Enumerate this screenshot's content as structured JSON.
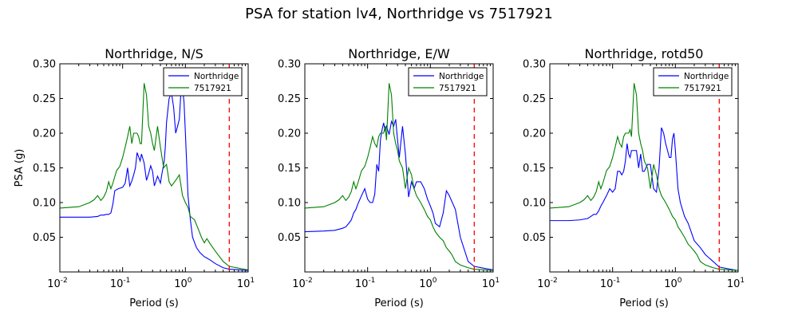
{
  "figure": {
    "suptitle": "PSA for station lv4, Northridge vs 7517921"
  },
  "chart_data": [
    {
      "type": "line",
      "title": "Northridge, N/S",
      "xlabel": "Period (s)",
      "ylabel": "PSA (g)",
      "xscale": "log",
      "xlim": [
        0.01,
        10
      ],
      "ylim": [
        0,
        0.3
      ],
      "yticks": [
        "0.05",
        "0.10",
        "0.15",
        "0.20",
        "0.25",
        "0.30"
      ],
      "xticks": [
        {
          "base": "10",
          "exp": "-2"
        },
        {
          "base": "10",
          "exp": "-1"
        },
        {
          "base": "10",
          "exp": "0"
        },
        {
          "base": "10",
          "exp": "1"
        }
      ],
      "legend": "top-right",
      "vline": {
        "x": 5,
        "color": "#ff0000",
        "style": "dashed"
      },
      "series": [
        {
          "name": "Northridge",
          "color": "#0000ff",
          "x": [
            0.01,
            0.02,
            0.03,
            0.04,
            0.045,
            0.05,
            0.055,
            0.06,
            0.065,
            0.07,
            0.075,
            0.085,
            0.1,
            0.11,
            0.12,
            0.13,
            0.14,
            0.15,
            0.16,
            0.17,
            0.19,
            0.2,
            0.22,
            0.24,
            0.26,
            0.28,
            0.3,
            0.32,
            0.36,
            0.4,
            0.42,
            0.46,
            0.48,
            0.5,
            0.55,
            0.6,
            0.65,
            0.7,
            0.75,
            0.8,
            0.85,
            0.9,
            0.95,
            1.0,
            1.1,
            1.2,
            1.3,
            1.5,
            1.7,
            2.0,
            2.2,
            2.5,
            3.0,
            4.0,
            5.0,
            7.5,
            10
          ],
          "y": [
            0.079,
            0.079,
            0.079,
            0.08,
            0.082,
            0.082,
            0.083,
            0.083,
            0.085,
            0.098,
            0.117,
            0.12,
            0.122,
            0.128,
            0.15,
            0.124,
            0.131,
            0.14,
            0.15,
            0.172,
            0.16,
            0.17,
            0.157,
            0.132,
            0.142,
            0.153,
            0.145,
            0.124,
            0.138,
            0.128,
            0.14,
            0.16,
            0.182,
            0.215,
            0.25,
            0.258,
            0.237,
            0.2,
            0.21,
            0.22,
            0.26,
            0.265,
            0.245,
            0.2,
            0.11,
            0.075,
            0.05,
            0.035,
            0.028,
            0.022,
            0.02,
            0.017,
            0.012,
            0.006,
            0.004,
            0.003,
            0.002
          ]
        },
        {
          "name": "7517921",
          "color": "#008000",
          "x": [
            0.01,
            0.02,
            0.03,
            0.035,
            0.04,
            0.045,
            0.05,
            0.055,
            0.06,
            0.065,
            0.07,
            0.08,
            0.09,
            0.1,
            0.11,
            0.12,
            0.13,
            0.14,
            0.15,
            0.16,
            0.17,
            0.18,
            0.19,
            0.2,
            0.22,
            0.24,
            0.26,
            0.28,
            0.3,
            0.32,
            0.36,
            0.4,
            0.45,
            0.5,
            0.55,
            0.6,
            0.7,
            0.8,
            0.9,
            1.0,
            1.1,
            1.2,
            1.4,
            1.6,
            1.8,
            2.0,
            2.2,
            2.5,
            3.0,
            4.0,
            5.0,
            7.5,
            10
          ],
          "y": [
            0.092,
            0.094,
            0.1,
            0.104,
            0.11,
            0.103,
            0.108,
            0.116,
            0.13,
            0.12,
            0.128,
            0.146,
            0.152,
            0.165,
            0.18,
            0.195,
            0.21,
            0.185,
            0.2,
            0.2,
            0.2,
            0.195,
            0.185,
            0.185,
            0.272,
            0.255,
            0.21,
            0.2,
            0.185,
            0.175,
            0.21,
            0.18,
            0.15,
            0.155,
            0.13,
            0.124,
            0.132,
            0.14,
            0.11,
            0.1,
            0.093,
            0.08,
            0.075,
            0.062,
            0.05,
            0.042,
            0.048,
            0.04,
            0.03,
            0.015,
            0.008,
            0.005,
            0.003
          ]
        }
      ]
    },
    {
      "type": "line",
      "title": "Northridge, E/W",
      "xlabel": "Period (s)",
      "ylabel": "",
      "xscale": "log",
      "xlim": [
        0.01,
        10
      ],
      "ylim": [
        0,
        0.3
      ],
      "yticks": [
        "0.05",
        "0.10",
        "0.15",
        "0.20",
        "0.25",
        "0.30"
      ],
      "xticks": [
        {
          "base": "10",
          "exp": "-2"
        },
        {
          "base": "10",
          "exp": "-1"
        },
        {
          "base": "10",
          "exp": "0"
        },
        {
          "base": "10",
          "exp": "1"
        }
      ],
      "legend": "top-right",
      "vline": {
        "x": 5,
        "color": "#ff0000",
        "style": "dashed"
      },
      "series": [
        {
          "name": "Northridge",
          "color": "#0000ff",
          "x": [
            0.01,
            0.02,
            0.03,
            0.04,
            0.045,
            0.05,
            0.055,
            0.06,
            0.065,
            0.07,
            0.08,
            0.09,
            0.1,
            0.11,
            0.12,
            0.13,
            0.14,
            0.15,
            0.16,
            0.17,
            0.18,
            0.19,
            0.2,
            0.22,
            0.24,
            0.26,
            0.28,
            0.3,
            0.32,
            0.36,
            0.4,
            0.45,
            0.5,
            0.55,
            0.6,
            0.7,
            0.8,
            0.9,
            1.0,
            1.1,
            1.2,
            1.4,
            1.6,
            1.8,
            2.0,
            2.5,
            3.0,
            4.0,
            5.0,
            7.5,
            10
          ],
          "y": [
            0.058,
            0.059,
            0.06,
            0.063,
            0.065,
            0.07,
            0.075,
            0.085,
            0.09,
            0.098,
            0.11,
            0.12,
            0.105,
            0.1,
            0.1,
            0.112,
            0.155,
            0.145,
            0.19,
            0.205,
            0.215,
            0.203,
            0.21,
            0.198,
            0.217,
            0.21,
            0.22,
            0.19,
            0.165,
            0.21,
            0.17,
            0.108,
            0.13,
            0.12,
            0.13,
            0.13,
            0.12,
            0.105,
            0.095,
            0.085,
            0.07,
            0.065,
            0.085,
            0.117,
            0.11,
            0.09,
            0.05,
            0.015,
            0.008,
            0.005,
            0.003
          ]
        },
        {
          "name": "7517921",
          "color": "#008000",
          "x": [
            0.01,
            0.02,
            0.03,
            0.035,
            0.04,
            0.045,
            0.05,
            0.055,
            0.06,
            0.065,
            0.07,
            0.08,
            0.09,
            0.1,
            0.11,
            0.12,
            0.13,
            0.14,
            0.15,
            0.16,
            0.17,
            0.18,
            0.19,
            0.2,
            0.22,
            0.24,
            0.26,
            0.28,
            0.3,
            0.32,
            0.36,
            0.4,
            0.45,
            0.5,
            0.55,
            0.6,
            0.7,
            0.8,
            0.9,
            1.0,
            1.1,
            1.2,
            1.4,
            1.6,
            1.8,
            2.0,
            2.2,
            2.5,
            3.0,
            4.0,
            5.0,
            7.5,
            10
          ],
          "y": [
            0.092,
            0.094,
            0.1,
            0.104,
            0.11,
            0.103,
            0.108,
            0.116,
            0.13,
            0.12,
            0.128,
            0.146,
            0.152,
            0.165,
            0.18,
            0.195,
            0.185,
            0.18,
            0.195,
            0.2,
            0.2,
            0.2,
            0.21,
            0.19,
            0.272,
            0.255,
            0.2,
            0.185,
            0.175,
            0.16,
            0.15,
            0.12,
            0.15,
            0.14,
            0.12,
            0.11,
            0.1,
            0.09,
            0.08,
            0.075,
            0.065,
            0.058,
            0.05,
            0.045,
            0.035,
            0.03,
            0.025,
            0.015,
            0.01,
            0.006,
            0.004,
            0.003,
            0.002
          ]
        }
      ]
    },
    {
      "type": "line",
      "title": "Northridge, rotd50",
      "xlabel": "Period (s)",
      "ylabel": "",
      "xscale": "log",
      "xlim": [
        0.01,
        10
      ],
      "ylim": [
        0,
        0.3
      ],
      "yticks": [
        "0.05",
        "0.10",
        "0.15",
        "0.20",
        "0.25",
        "0.30"
      ],
      "xticks": [
        {
          "base": "10",
          "exp": "-2"
        },
        {
          "base": "10",
          "exp": "-1"
        },
        {
          "base": "10",
          "exp": "0"
        },
        {
          "base": "10",
          "exp": "1"
        }
      ],
      "legend": "top-right",
      "vline": {
        "x": 5,
        "color": "#ff0000",
        "style": "dashed"
      },
      "series": [
        {
          "name": "Northridge",
          "color": "#0000ff",
          "x": [
            0.01,
            0.02,
            0.03,
            0.04,
            0.045,
            0.05,
            0.055,
            0.06,
            0.065,
            0.07,
            0.08,
            0.09,
            0.1,
            0.11,
            0.12,
            0.13,
            0.14,
            0.15,
            0.16,
            0.17,
            0.18,
            0.19,
            0.2,
            0.22,
            0.24,
            0.26,
            0.28,
            0.3,
            0.32,
            0.36,
            0.4,
            0.45,
            0.5,
            0.55,
            0.6,
            0.65,
            0.7,
            0.75,
            0.8,
            0.85,
            0.9,
            0.95,
            1.0,
            1.1,
            1.2,
            1.4,
            1.6,
            2.0,
            2.5,
            3.0,
            4.0,
            5.0,
            7.5,
            10
          ],
          "y": [
            0.074,
            0.074,
            0.075,
            0.077,
            0.08,
            0.083,
            0.083,
            0.088,
            0.095,
            0.1,
            0.11,
            0.12,
            0.115,
            0.12,
            0.145,
            0.145,
            0.14,
            0.145,
            0.16,
            0.185,
            0.17,
            0.165,
            0.175,
            0.175,
            0.175,
            0.15,
            0.17,
            0.145,
            0.145,
            0.155,
            0.155,
            0.12,
            0.115,
            0.15,
            0.208,
            0.2,
            0.185,
            0.175,
            0.165,
            0.165,
            0.192,
            0.2,
            0.175,
            0.12,
            0.1,
            0.08,
            0.07,
            0.045,
            0.035,
            0.025,
            0.015,
            0.007,
            0.004,
            0.002
          ]
        },
        {
          "name": "7517921",
          "color": "#008000",
          "x": [
            0.01,
            0.02,
            0.03,
            0.035,
            0.04,
            0.045,
            0.05,
            0.055,
            0.06,
            0.065,
            0.07,
            0.08,
            0.09,
            0.1,
            0.11,
            0.12,
            0.13,
            0.14,
            0.15,
            0.16,
            0.17,
            0.18,
            0.19,
            0.2,
            0.22,
            0.24,
            0.26,
            0.28,
            0.3,
            0.32,
            0.36,
            0.4,
            0.45,
            0.5,
            0.55,
            0.6,
            0.7,
            0.8,
            0.9,
            1.0,
            1.1,
            1.2,
            1.4,
            1.6,
            1.8,
            2.0,
            2.2,
            2.5,
            3.0,
            4.0,
            5.0,
            7.5,
            10
          ],
          "y": [
            0.092,
            0.094,
            0.1,
            0.104,
            0.11,
            0.103,
            0.108,
            0.116,
            0.13,
            0.12,
            0.128,
            0.146,
            0.152,
            0.165,
            0.18,
            0.195,
            0.185,
            0.18,
            0.195,
            0.2,
            0.2,
            0.2,
            0.205,
            0.195,
            0.272,
            0.255,
            0.2,
            0.185,
            0.175,
            0.16,
            0.15,
            0.12,
            0.155,
            0.14,
            0.12,
            0.11,
            0.1,
            0.09,
            0.08,
            0.075,
            0.065,
            0.06,
            0.05,
            0.04,
            0.035,
            0.03,
            0.025,
            0.015,
            0.01,
            0.006,
            0.004,
            0.003,
            0.002
          ]
        }
      ]
    }
  ]
}
